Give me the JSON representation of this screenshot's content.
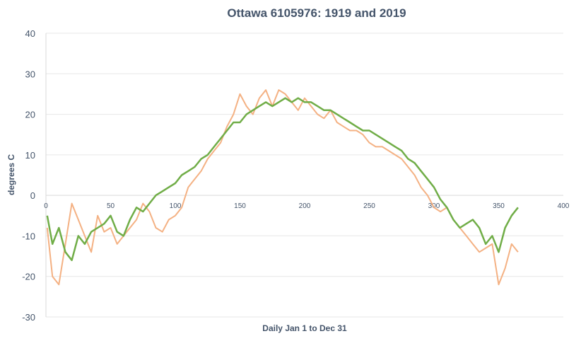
{
  "chart_data": {
    "type": "line",
    "title": "Ottawa 6105976: 1919 and 2019",
    "xlabel": "Daily Jan 1 to Dec 31",
    "ylabel": "degrees C",
    "xlim": [
      0,
      400
    ],
    "ylim": [
      -30,
      40
    ],
    "x_ticks": [
      "0",
      "50",
      "100",
      "150",
      "200",
      "250",
      "300",
      "350",
      "400"
    ],
    "y_ticks": [
      "40",
      "30",
      "20",
      "10",
      "0",
      "-10",
      "-20",
      "-30"
    ],
    "grid": true,
    "legend": "none",
    "series": [
      {
        "color": "#f4b183",
        "x": [
          1,
          5,
          10,
          15,
          20,
          25,
          30,
          35,
          40,
          45,
          50,
          55,
          60,
          65,
          70,
          75,
          80,
          85,
          90,
          95,
          100,
          105,
          110,
          115,
          120,
          125,
          130,
          135,
          140,
          145,
          150,
          155,
          160,
          165,
          170,
          175,
          180,
          185,
          190,
          195,
          200,
          205,
          210,
          215,
          220,
          225,
          230,
          235,
          240,
          245,
          250,
          255,
          260,
          265,
          270,
          275,
          280,
          285,
          290,
          295,
          300,
          305,
          310,
          315,
          320,
          325,
          330,
          335,
          340,
          345,
          350,
          355,
          360,
          365
        ],
        "y": [
          -8,
          -20,
          -22,
          -12,
          -2,
          -6,
          -10,
          -14,
          -5,
          -9,
          -8,
          -12,
          -10,
          -8,
          -6,
          -2,
          -4,
          -8,
          -9,
          -6,
          -5,
          -3,
          2,
          4,
          6,
          9,
          11,
          13,
          17,
          20,
          25,
          22,
          20,
          24,
          26,
          22,
          26,
          25,
          23,
          21,
          24,
          22,
          20,
          19,
          21,
          18,
          17,
          16,
          16,
          15,
          13,
          12,
          12,
          11,
          10,
          9,
          7,
          5,
          2,
          0,
          -3,
          -4,
          -3,
          -6,
          -8,
          -10,
          -12,
          -14,
          -13,
          -12,
          -22,
          -18,
          -12,
          -14
        ]
      },
      {
        "color": "#70ad47",
        "x": [
          1,
          5,
          10,
          15,
          20,
          25,
          30,
          35,
          40,
          45,
          50,
          55,
          60,
          65,
          70,
          75,
          80,
          85,
          90,
          95,
          100,
          105,
          110,
          115,
          120,
          125,
          130,
          135,
          140,
          145,
          150,
          155,
          160,
          165,
          170,
          175,
          180,
          185,
          190,
          195,
          200,
          205,
          210,
          215,
          220,
          225,
          230,
          235,
          240,
          245,
          250,
          255,
          260,
          265,
          270,
          275,
          280,
          285,
          290,
          295,
          300,
          305,
          310,
          315,
          320,
          325,
          330,
          335,
          340,
          345,
          350,
          355,
          360,
          365
        ],
        "y": [
          -5,
          -12,
          -8,
          -14,
          -16,
          -10,
          -12,
          -9,
          -8,
          -7,
          -5,
          -9,
          -10,
          -6,
          -3,
          -4,
          -2,
          0,
          1,
          2,
          3,
          5,
          6,
          7,
          9,
          10,
          12,
          14,
          16,
          18,
          18,
          20,
          21,
          22,
          23,
          22,
          23,
          24,
          23,
          24,
          23,
          23,
          22,
          21,
          21,
          20,
          19,
          18,
          17,
          16,
          16,
          15,
          14,
          13,
          12,
          11,
          9,
          8,
          6,
          4,
          2,
          -1,
          -3,
          -6,
          -8,
          -7,
          -6,
          -8,
          -12,
          -10,
          -14,
          -8,
          -5,
          -3
        ]
      }
    ]
  }
}
